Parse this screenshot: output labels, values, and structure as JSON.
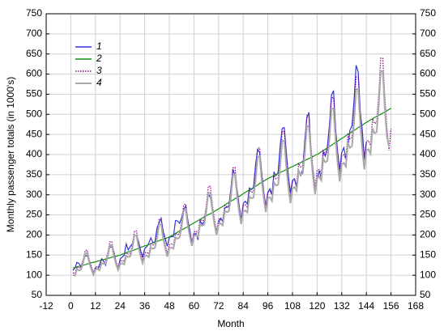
{
  "chart_data": {
    "type": "line",
    "xlabel": "Month",
    "ylabel": "Monthly passenger totals (in 1000's)",
    "xlim": [
      -12,
      168
    ],
    "xticks": [
      -12,
      0,
      12,
      24,
      36,
      48,
      60,
      72,
      84,
      96,
      108,
      120,
      132,
      144,
      156,
      168
    ],
    "ylim": [
      50,
      750
    ],
    "yticks": [
      50,
      100,
      150,
      200,
      250,
      300,
      350,
      400,
      450,
      500,
      550,
      600,
      650,
      700,
      750
    ],
    "grid": true,
    "legend": "upper left",
    "x": [
      1,
      2,
      3,
      4,
      5,
      6,
      7,
      8,
      9,
      10,
      11,
      12,
      13,
      14,
      15,
      16,
      17,
      18,
      19,
      20,
      21,
      22,
      23,
      24,
      25,
      26,
      27,
      28,
      29,
      30,
      31,
      32,
      33,
      34,
      35,
      36,
      37,
      38,
      39,
      40,
      41,
      42,
      43,
      44,
      45,
      46,
      47,
      48,
      49,
      50,
      51,
      52,
      53,
      54,
      55,
      56,
      57,
      58,
      59,
      60,
      61,
      62,
      63,
      64,
      65,
      66,
      67,
      68,
      69,
      70,
      71,
      72,
      73,
      74,
      75,
      76,
      77,
      78,
      79,
      80,
      81,
      82,
      83,
      84,
      85,
      86,
      87,
      88,
      89,
      90,
      91,
      92,
      93,
      94,
      95,
      96,
      97,
      98,
      99,
      100,
      101,
      102,
      103,
      104,
      105,
      106,
      107,
      108,
      109,
      110,
      111,
      112,
      113,
      114,
      115,
      116,
      117,
      118,
      119,
      120,
      121,
      122,
      123,
      124,
      125,
      126,
      127,
      128,
      129,
      130,
      131,
      132,
      133,
      134,
      135,
      136,
      137,
      138,
      139,
      140,
      141,
      142,
      143,
      144,
      145,
      146,
      147,
      148,
      149,
      150,
      151,
      152,
      153,
      154,
      155,
      156
    ],
    "series": [
      {
        "name": "1",
        "color": "#3333dd",
        "dash": "solid",
        "values": [
          112,
          118,
          132,
          129,
          121,
          135,
          148,
          148,
          136,
          119,
          104,
          118,
          115,
          126,
          141,
          135,
          125,
          149,
          170,
          170,
          158,
          133,
          114,
          140,
          145,
          150,
          178,
          163,
          172,
          178,
          199,
          199,
          184,
          162,
          146,
          166,
          171,
          180,
          193,
          181,
          183,
          218,
          230,
          242,
          209,
          191,
          172,
          194,
          196,
          196,
          236,
          235,
          229,
          243,
          264,
          272,
          237,
          211,
          180,
          201,
          204,
          188,
          235,
          227,
          234,
          264,
          302,
          293,
          259,
          229,
          203,
          229,
          242,
          233,
          267,
          269,
          270,
          315,
          364,
          347,
          312,
          274,
          237,
          278,
          284,
          277,
          317,
          313,
          318,
          374,
          413,
          405,
          355,
          306,
          271,
          306,
          315,
          301,
          356,
          348,
          355,
          422,
          465,
          467,
          404,
          347,
          305,
          336,
          340,
          318,
          362,
          348,
          363,
          435,
          491,
          505,
          404,
          359,
          310,
          337,
          360,
          342,
          406,
          396,
          420,
          472,
          548,
          559,
          463,
          407,
          362,
          405,
          417,
          391,
          419,
          461,
          472,
          535,
          622,
          606,
          508,
          461,
          390,
          432,
          null,
          null,
          null,
          null,
          null,
          null,
          null,
          null,
          null,
          null,
          null,
          null
        ]
      },
      {
        "name": "2",
        "color": "#109010",
        "dash": "solid",
        "values": [
          118,
          119,
          121,
          122,
          124,
          125,
          126,
          128,
          129,
          131,
          132,
          133,
          135,
          136,
          138,
          139,
          140,
          142,
          143,
          145,
          146,
          147,
          149,
          150,
          152,
          154,
          156,
          158,
          160,
          161,
          163,
          165,
          167,
          169,
          171,
          173,
          174,
          176,
          178,
          180,
          182,
          184,
          186,
          188,
          189,
          191,
          193,
          195,
          198,
          201,
          204,
          207,
          210,
          213,
          215,
          218,
          221,
          224,
          227,
          230,
          233,
          236,
          239,
          242,
          245,
          248,
          251,
          253,
          256,
          259,
          262,
          265,
          268,
          271,
          274,
          278,
          281,
          284,
          287,
          290,
          293,
          296,
          299,
          303,
          306,
          309,
          312,
          315,
          318,
          321,
          324,
          328,
          331,
          334,
          337,
          340,
          343,
          345,
          348,
          350,
          353,
          355,
          358,
          360,
          363,
          365,
          368,
          370,
          373,
          375,
          378,
          380,
          383,
          385,
          388,
          390,
          393,
          395,
          398,
          400,
          403,
          407,
          410,
          413,
          417,
          420,
          423,
          427,
          430,
          433,
          437,
          440,
          443,
          447,
          450,
          453,
          457,
          460,
          463,
          467,
          470,
          473,
          477,
          480,
          483,
          486,
          489,
          492,
          495,
          498,
          500,
          503,
          506,
          509,
          512,
          515
        ]
      },
      {
        "name": "3",
        "color": "#8a008a",
        "dash": "dotted",
        "values": [
          106,
          104,
          121,
          118,
          120,
          138,
          161,
          163,
          138,
          121,
          106,
          120,
          122,
          118,
          138,
          135,
          136,
          156,
          183,
          184,
          156,
          135,
          119,
          135,
          137,
          134,
          156,
          153,
          155,
          177,
          209,
          210,
          179,
          155,
          137,
          156,
          157,
          153,
          178,
          175,
          177,
          202,
          238,
          239,
          202,
          176,
          154,
          176,
          178,
          175,
          204,
          201,
          204,
          234,
          275,
          277,
          236,
          206,
          182,
          207,
          210,
          205,
          239,
          235,
          238,
          273,
          321,
          321,
          274,
          238,
          210,
          239,
          241,
          236,
          274,
          270,
          273,
          312,
          367,
          368,
          314,
          272,
          239,
          273,
          275,
          269,
          312,
          306,
          308,
          353,
          415,
          417,
          354,
          307,
          270,
          306,
          309,
          300,
          348,
          340,
          342,
          391,
          458,
          457,
          388,
          336,
          294,
          333,
          336,
          326,
          378,
          369,
          372,
          424,
          497,
          495,
          421,
          363,
          318,
          360,
          363,
          354,
          410,
          401,
          404,
          462,
          541,
          542,
          460,
          398,
          350,
          396,
          399,
          389,
          450,
          439,
          443,
          506,
          593,
          593,
          503,
          435,
          382,
          432,
          435,
          423,
          489,
          477,
          480,
          548,
          640,
          639,
          541,
          468,
          410,
          464
        ]
      },
      {
        "name": "4",
        "color": "#aaaaaa",
        "dash": "solid",
        "values": [
          101,
          99,
          115,
          112,
          114,
          131,
          153,
          155,
          131,
          115,
          101,
          114,
          116,
          112,
          131,
          128,
          129,
          148,
          174,
          175,
          148,
          128,
          113,
          128,
          130,
          127,
          148,
          145,
          147,
          168,
          199,
          200,
          170,
          147,
          130,
          148,
          149,
          145,
          169,
          166,
          168,
          192,
          226,
          227,
          192,
          167,
          146,
          167,
          169,
          166,
          194,
          191,
          194,
          222,
          261,
          263,
          224,
          196,
          173,
          197,
          200,
          195,
          227,
          223,
          226,
          259,
          305,
          305,
          260,
          226,
          200,
          227,
          229,
          224,
          260,
          257,
          259,
          296,
          349,
          350,
          298,
          258,
          227,
          259,
          261,
          256,
          296,
          291,
          293,
          335,
          394,
          396,
          336,
          292,
          257,
          291,
          294,
          285,
          331,
          323,
          325,
          371,
          435,
          434,
          369,
          319,
          279,
          316,
          319,
          310,
          359,
          351,
          353,
          403,
          472,
          470,
          400,
          345,
          302,
          342,
          345,
          336,
          390,
          381,
          384,
          439,
          514,
          515,
          437,
          378,
          333,
          376,
          379,
          370,
          428,
          417,
          421,
          481,
          563,
          563,
          478,
          413,
          363,
          410,
          413,
          402,
          465,
          453,
          456,
          521,
          608,
          607,
          514,
          445,
          420,
          null
        ]
      }
    ]
  }
}
